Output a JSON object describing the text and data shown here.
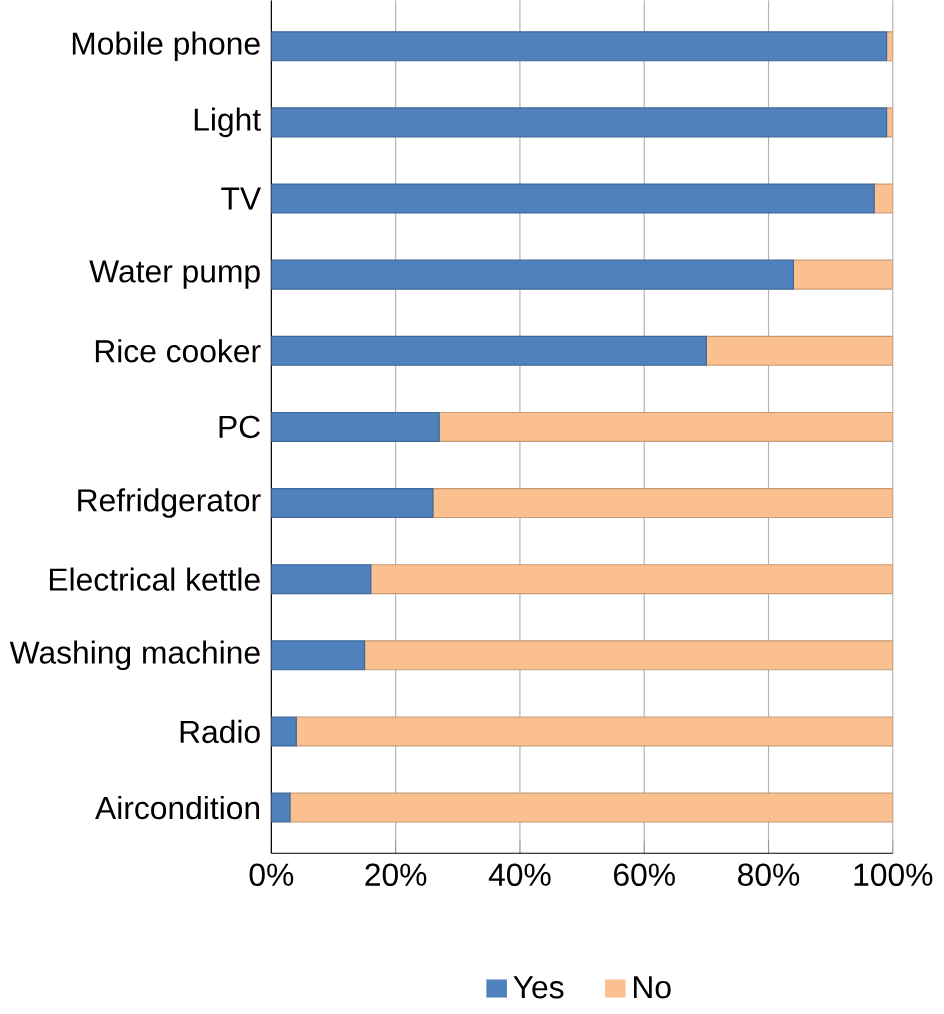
{
  "chart_data": {
    "type": "bar",
    "orientation": "horizontal",
    "stacked": true,
    "categories": [
      "Mobile phone",
      "Light",
      "TV",
      "Water pump",
      "Rice cooker",
      "PC",
      "Refridgerator",
      "Electrical kettle",
      "Washing machine",
      "Radio",
      "Aircondition"
    ],
    "series": [
      {
        "name": "Yes",
        "color": "#4f81bd",
        "values": [
          99,
          99,
          97,
          84,
          70,
          27,
          26,
          16,
          15,
          4,
          3
        ]
      },
      {
        "name": "No",
        "color": "#fac090",
        "values": [
          1,
          1,
          3,
          16,
          30,
          73,
          74,
          84,
          85,
          96,
          97
        ]
      }
    ],
    "xlim": [
      0,
      100
    ],
    "xticks": [
      {
        "value": 0,
        "label": "0%"
      },
      {
        "value": 20,
        "label": "20%"
      },
      {
        "value": 40,
        "label": "40%"
      },
      {
        "value": 60,
        "label": "60%"
      },
      {
        "value": 80,
        "label": "80%"
      },
      {
        "value": 100,
        "label": "100%"
      }
    ],
    "grid": "x",
    "legend": "bottom"
  }
}
